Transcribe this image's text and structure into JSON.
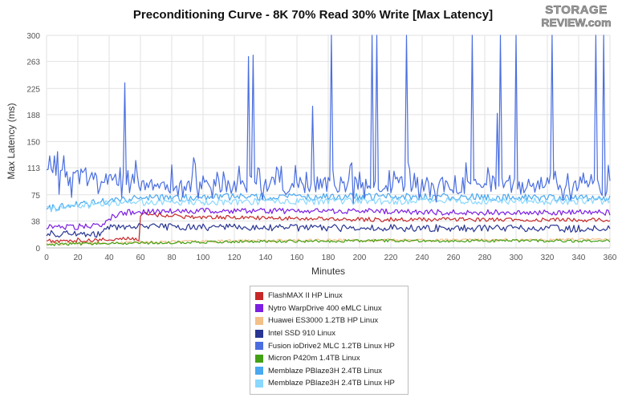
{
  "chart_data": {
    "type": "line",
    "title": "Preconditioning Curve - 8K 70% Read 30% Write [Max Latency]",
    "xlabel": "Minutes",
    "ylabel": "Max Latency (ms)",
    "xlim": [
      0,
      360
    ],
    "ylim": [
      0,
      300
    ],
    "x_ticks": [
      0,
      20,
      40,
      60,
      80,
      100,
      120,
      140,
      160,
      180,
      200,
      220,
      240,
      260,
      280,
      300,
      320,
      340,
      360
    ],
    "y_ticks": [
      0,
      38,
      75,
      113,
      150,
      188,
      225,
      263,
      300
    ],
    "grid": true,
    "legend_position": "bottom",
    "series": [
      {
        "name": "FlashMAX II HP Linux",
        "color": "#c62828",
        "base": 40,
        "noise": 3,
        "points": [
          [
            0,
            10
          ],
          [
            20,
            11
          ],
          [
            40,
            12
          ],
          [
            59,
            13
          ],
          [
            60,
            45
          ],
          [
            62,
            48
          ],
          [
            90,
            44
          ],
          [
            150,
            42
          ],
          [
            210,
            40
          ],
          [
            270,
            40
          ],
          [
            330,
            40
          ],
          [
            360,
            39
          ]
        ]
      },
      {
        "name": "Nytro WarpDrive 400 eMLC Linux",
        "color": "#7b1fe0",
        "base": 50,
        "noise": 4,
        "points": [
          [
            0,
            30
          ],
          [
            20,
            30
          ],
          [
            36,
            32
          ],
          [
            40,
            42
          ],
          [
            50,
            50
          ],
          [
            80,
            52
          ],
          [
            140,
            52
          ],
          [
            200,
            52
          ],
          [
            260,
            50
          ],
          [
            320,
            50
          ],
          [
            360,
            50
          ]
        ]
      },
      {
        "name": "Huawei ES3000 1.2TB HP Linux",
        "color": "#f3c089",
        "base": 12,
        "noise": 2,
        "points": [
          [
            0,
            6
          ],
          [
            60,
            8
          ],
          [
            120,
            10
          ],
          [
            200,
            11
          ],
          [
            280,
            11
          ],
          [
            360,
            12
          ]
        ]
      },
      {
        "name": "Intel SSD 910 Linux",
        "color": "#283593",
        "base": 27,
        "noise": 5,
        "points": [
          [
            0,
            20
          ],
          [
            36,
            20
          ],
          [
            40,
            30
          ],
          [
            100,
            29
          ],
          [
            180,
            28
          ],
          [
            260,
            28
          ],
          [
            360,
            27
          ]
        ]
      },
      {
        "name": "Fusion ioDrive2 MLC 1.2TB Linux HP",
        "color": "#4a6ee0",
        "base": 92,
        "noise": 12,
        "points": [
          [
            0,
            120
          ],
          [
            10,
            100
          ],
          [
            30,
            95
          ],
          [
            60,
            92
          ],
          [
            120,
            90
          ],
          [
            200,
            90
          ],
          [
            280,
            88
          ],
          [
            360,
            88
          ]
        ],
        "spikes": [
          [
            2,
            130
          ],
          [
            5,
            130
          ],
          [
            50,
            233
          ],
          [
            129,
            270
          ],
          [
            132,
            272
          ],
          [
            170,
            200
          ],
          [
            182,
            300
          ],
          [
            208,
            300
          ],
          [
            211,
            300
          ],
          [
            230,
            300
          ],
          [
            272,
            300
          ],
          [
            288,
            190
          ],
          [
            290,
            300
          ],
          [
            300,
            300
          ],
          [
            323,
            300
          ],
          [
            351,
            300
          ],
          [
            356,
            300
          ]
        ]
      },
      {
        "name": "Micron P420m 1.4TB Linux",
        "color": "#43a015",
        "base": 9,
        "noise": 2,
        "points": [
          [
            0,
            5
          ],
          [
            60,
            7
          ],
          [
            120,
            9
          ],
          [
            200,
            10
          ],
          [
            280,
            10
          ],
          [
            360,
            10
          ]
        ]
      },
      {
        "name": "Memblaze PBlaze3H 2.4TB Linux",
        "color": "#4aa8f0",
        "base": 70,
        "noise": 5,
        "points": [
          [
            0,
            55
          ],
          [
            20,
            62
          ],
          [
            60,
            70
          ],
          [
            120,
            72
          ],
          [
            200,
            72
          ],
          [
            280,
            72
          ],
          [
            360,
            70
          ]
        ]
      },
      {
        "name": "Memblaze PBlaze3H 2.4TB Linux HP",
        "color": "#8ad8ff",
        "base": 65,
        "noise": 5,
        "points": [
          [
            0,
            55
          ],
          [
            20,
            60
          ],
          [
            60,
            64
          ],
          [
            120,
            65
          ],
          [
            200,
            66
          ],
          [
            280,
            66
          ],
          [
            360,
            66
          ]
        ]
      }
    ]
  },
  "logo": {
    "line1": "STORAGE",
    "line2": "REVIEW.com"
  }
}
